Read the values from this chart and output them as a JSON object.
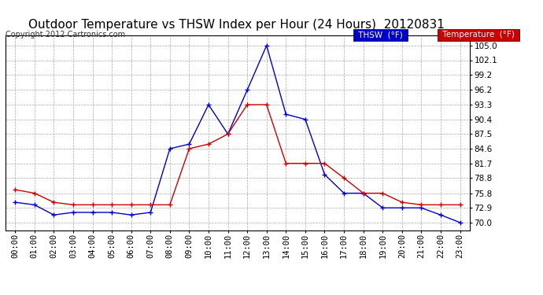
{
  "title": "Outdoor Temperature vs THSW Index per Hour (24 Hours)  20120831",
  "copyright": "Copyright 2012 Cartronics.com",
  "hours": [
    "00:00",
    "01:00",
    "02:00",
    "03:00",
    "04:00",
    "05:00",
    "06:00",
    "07:00",
    "08:00",
    "09:00",
    "10:00",
    "11:00",
    "12:00",
    "13:00",
    "14:00",
    "15:00",
    "16:00",
    "17:00",
    "18:00",
    "19:00",
    "20:00",
    "21:00",
    "22:00",
    "23:00"
  ],
  "thsw": [
    74.0,
    73.5,
    71.5,
    72.0,
    72.0,
    72.0,
    71.5,
    72.0,
    84.6,
    85.5,
    93.3,
    87.5,
    96.2,
    105.0,
    91.4,
    90.4,
    79.5,
    75.8,
    75.8,
    72.9,
    72.9,
    72.9,
    71.5,
    70.0
  ],
  "temperature": [
    76.5,
    75.8,
    74.0,
    73.5,
    73.5,
    73.5,
    73.5,
    73.5,
    73.5,
    84.6,
    85.5,
    87.5,
    93.3,
    93.3,
    81.7,
    81.7,
    81.7,
    78.8,
    75.8,
    75.8,
    74.0,
    73.5,
    73.5,
    73.5
  ],
  "thsw_color": "#0000cc",
  "temp_color": "#cc0000",
  "bg_color": "#ffffff",
  "grid_color": "#aaaaaa",
  "yticks": [
    70.0,
    72.9,
    75.8,
    78.8,
    81.7,
    84.6,
    87.5,
    90.4,
    93.3,
    96.2,
    99.2,
    102.1,
    105.0
  ],
  "ymin": 68.5,
  "ymax": 107.0,
  "legend_thsw_label": "THSW  (°F)",
  "legend_temp_label": "Temperature  (°F)",
  "title_fontsize": 11,
  "tick_fontsize": 7.5,
  "copyright_fontsize": 7
}
